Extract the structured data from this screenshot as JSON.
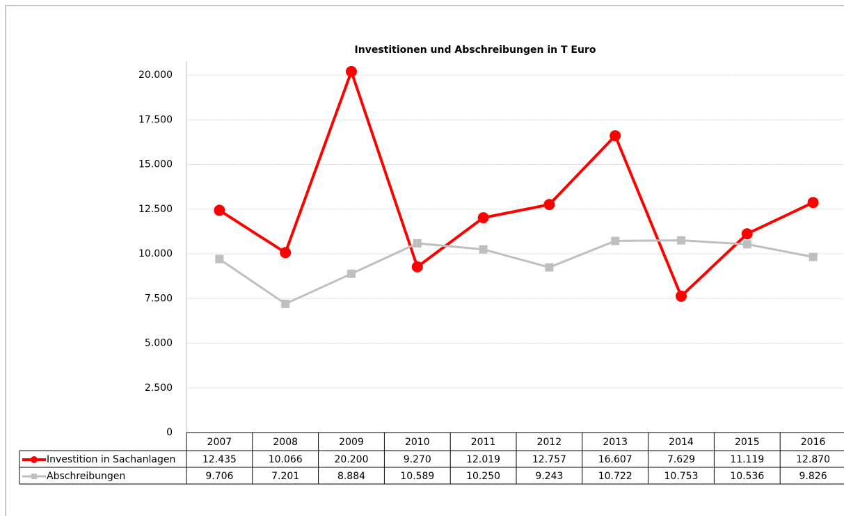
{
  "chart_data": {
    "type": "line",
    "title": "Investitionen und Abschreibungen in T Euro",
    "categories": [
      "2007",
      "2008",
      "2009",
      "2010",
      "2011",
      "2012",
      "2013",
      "2014",
      "2015",
      "2016"
    ],
    "series": [
      {
        "name": "Investition in Sachanlagen",
        "color": "#ff0000",
        "marker": "circle",
        "values": [
          12435,
          10066,
          20200,
          9270,
          12019,
          12757,
          16607,
          7629,
          11119,
          12870
        ],
        "value_labels": [
          "12.435",
          "10.066",
          "20.200",
          "9.270",
          "12.019",
          "12.757",
          "16.607",
          "7.629",
          "11.119",
          "12.870"
        ]
      },
      {
        "name": "Abschreibungen",
        "color": "#bfbfbf",
        "marker": "square",
        "values": [
          9706,
          7201,
          8884,
          10589,
          10250,
          9243,
          10722,
          10753,
          10536,
          9826
        ],
        "value_labels": [
          "9.706",
          "7.201",
          "8.884",
          "10.589",
          "10.250",
          "9.243",
          "10.722",
          "10.753",
          "10.536",
          "9.826"
        ]
      }
    ],
    "ylim": [
      0,
      20000
    ],
    "yticks": [
      0,
      {
        "value": 2500,
        "label": "2.500"
      },
      {
        "value": 5000,
        "label": "5.000"
      },
      {
        "value": 7500,
        "label": "7.500"
      },
      {
        "value": 10000,
        "label": "10.000"
      },
      {
        "value": 12500,
        "label": "12.500"
      },
      {
        "value": 15000,
        "label": "15.000"
      },
      {
        "value": 17500,
        "label": "17.500"
      },
      {
        "value": 20000,
        "label": "20.000"
      }
    ],
    "grid": true
  }
}
